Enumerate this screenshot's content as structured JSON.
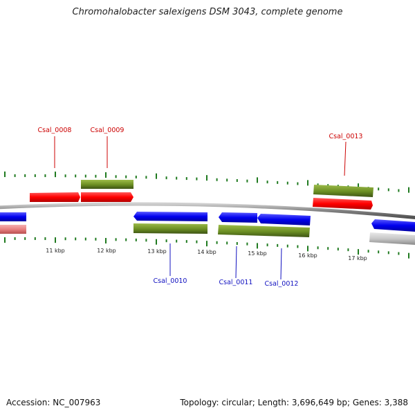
{
  "title": "Chromohalobacter salexigens DSM 3043, complete genome",
  "footer": {
    "accession": "Accession: NC_007963",
    "summary": "Topology: circular; Length: 3,696,649 bp; Genes: 3,388"
  },
  "scale": {
    "labels": [
      "11 kbp",
      "12 kbp",
      "13 kbp",
      "14 kbp",
      "15 kbp",
      "16 kbp",
      "17 kbp"
    ]
  },
  "genes": [
    {
      "id": "Csal_0008",
      "strand": "+",
      "label_color": "#cc0000"
    },
    {
      "id": "Csal_0009",
      "strand": "+",
      "label_color": "#cc0000"
    },
    {
      "id": "Csal_0010",
      "strand": "-",
      "label_color": "#1010c0"
    },
    {
      "id": "Csal_0011",
      "strand": "-",
      "label_color": "#1010c0"
    },
    {
      "id": "Csal_0012",
      "strand": "-",
      "label_color": "#1010c0"
    },
    {
      "id": "Csal_0013",
      "strand": "+",
      "label_color": "#cc0000"
    }
  ],
  "colors": {
    "plus_gene": "#ff0000",
    "minus_gene": "#0000ee",
    "cds_feature": "#6b8e23",
    "genome_line": "#808080",
    "tick": "#1f7a1f",
    "faded_plus": "#e88080",
    "faded_other": "#c0c0c0"
  }
}
